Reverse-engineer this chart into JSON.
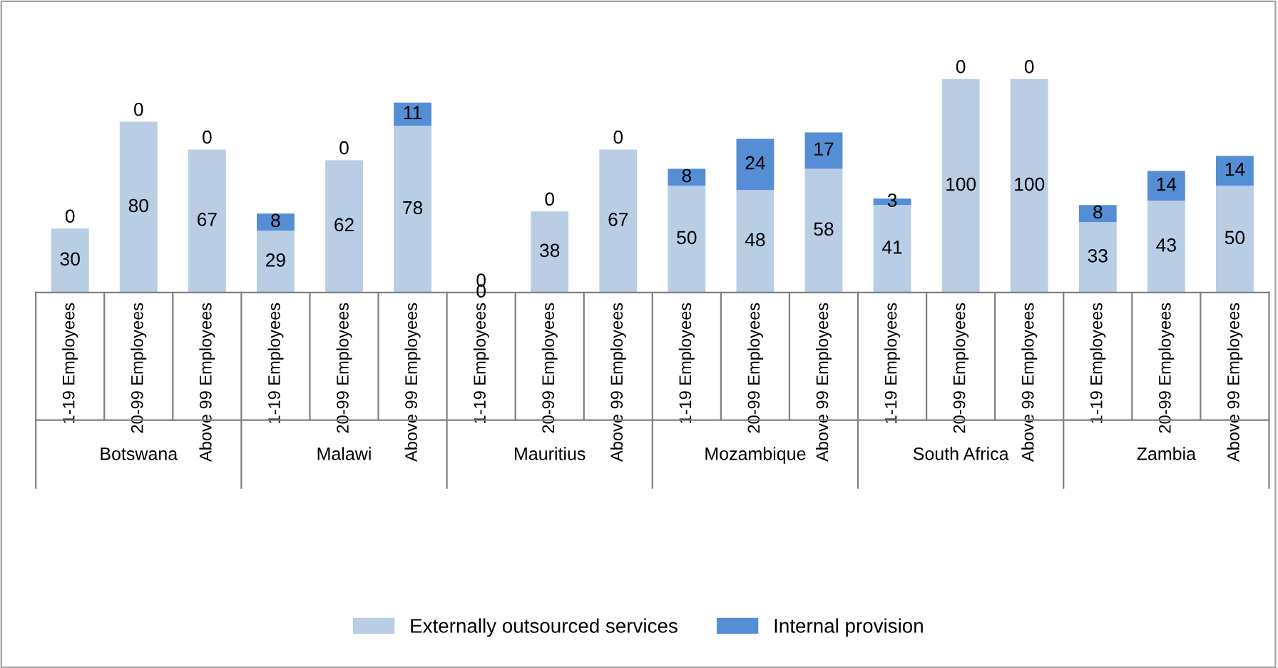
{
  "chart_data": {
    "type": "bar",
    "stacked": true,
    "data_labels": true,
    "legend": "bottom",
    "grid": false,
    "categories": [
      "1-19 Employees",
      "20-99 Employees",
      "Above 99 Employees",
      "1-19 Employees",
      "20-99 Employees",
      "Above 99 Employees",
      "1-19 Employees",
      "20-99 Employees",
      "Above 99 Employees",
      "1-19 Employees",
      "20-99 Employees",
      "Above 99 Employees",
      "1-19 Employees",
      "20-99 Employees",
      "Above 99 Employees",
      "1-19 Employees",
      "20-99 Employees",
      "Above 99 Employees"
    ],
    "annotations": [
      "Botswana",
      "Malawi",
      "Mauritius",
      "Mozambique",
      "South Africa",
      "Zambia"
    ],
    "series": [
      {
        "name": "Externally outsourced services",
        "color": "#b9cde5",
        "values": [
          30,
          80,
          67,
          29,
          62,
          78,
          0,
          38,
          67,
          50,
          48,
          58,
          41,
          100,
          100,
          33,
          43,
          50
        ]
      },
      {
        "name": "Internal provision",
        "color": "#558ed5",
        "values": [
          0,
          0,
          0,
          8,
          0,
          11,
          0,
          0,
          0,
          8,
          24,
          17,
          3,
          0,
          0,
          8,
          14,
          14
        ]
      }
    ]
  }
}
